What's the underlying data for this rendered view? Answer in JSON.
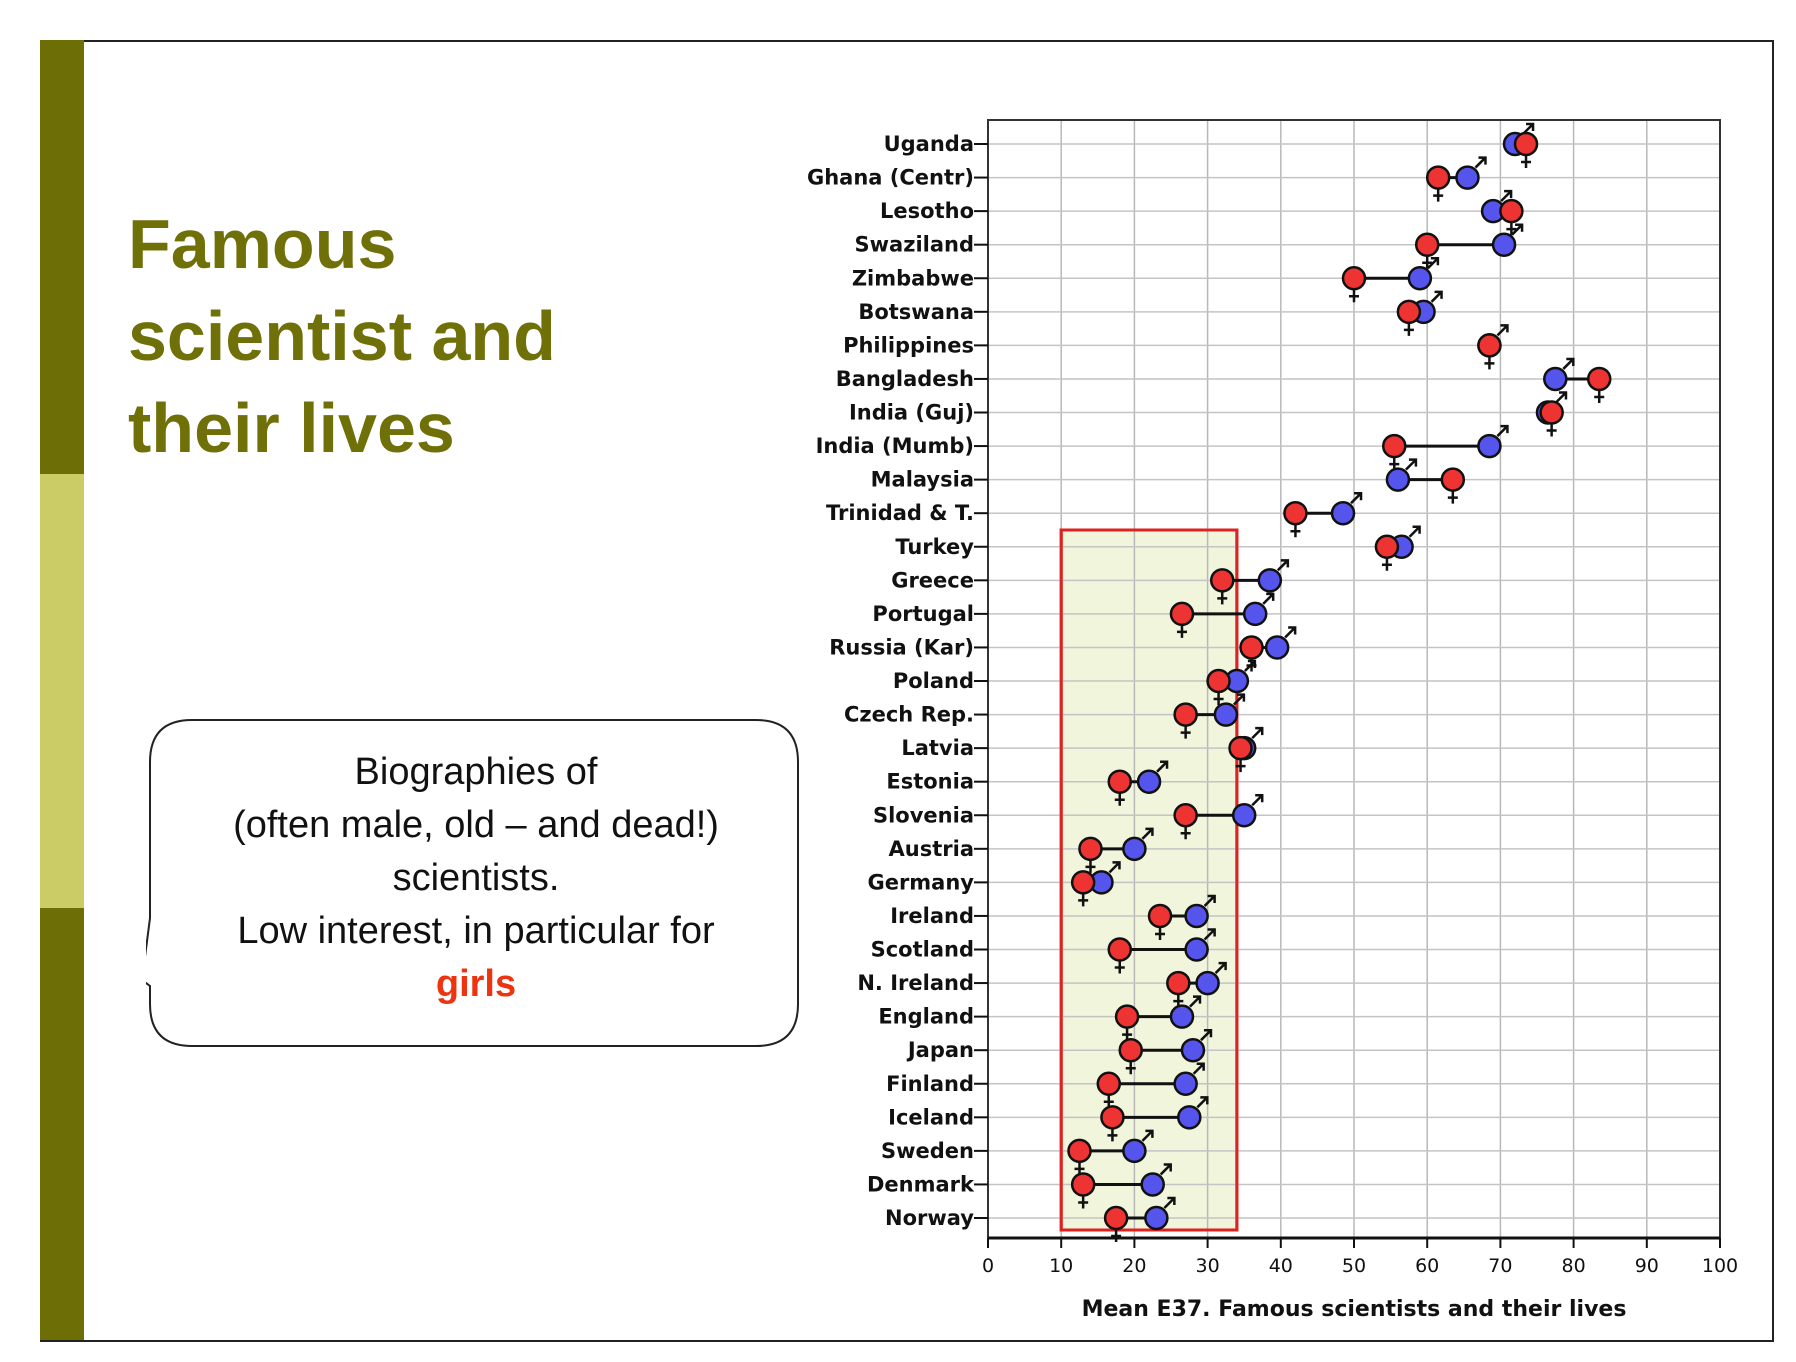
{
  "slide": {
    "title": "Famous\nscientist and\ntheir lives",
    "bubble": {
      "lines": [
        "Biographies of",
        "(often male, old – and dead!)",
        "scientists.",
        "Low interest, in particular for"
      ],
      "highlight": "girls"
    },
    "colors": {
      "title": "#707008",
      "bar_dark": "#6e6e06",
      "bar_light": "#cccc66",
      "highlight": "#ee3311"
    }
  },
  "chart_data": {
    "type": "scatter",
    "subtype": "dumbbell",
    "xlabel": "Mean E37. Famous scientists and their lives",
    "xlim": [
      0,
      100
    ],
    "xticks": [
      0,
      10,
      20,
      30,
      40,
      50,
      60,
      70,
      80,
      90,
      100
    ],
    "grid": true,
    "series": [
      {
        "name": "girls",
        "symbol": "♀",
        "color": "#ee3333"
      },
      {
        "name": "boys",
        "symbol": "♂",
        "color": "#5555ee"
      }
    ],
    "highlight_range": [
      10,
      34
    ],
    "categories": [
      "Uganda",
      "Ghana (Centr)",
      "Lesotho",
      "Swaziland",
      "Zimbabwe",
      "Botswana",
      "Philippines",
      "Bangladesh",
      "India (Guj)",
      "India (Mumb)",
      "Malaysia",
      "Trinidad & T.",
      "Turkey",
      "Greece",
      "Portugal",
      "Russia (Kar)",
      "Poland",
      "Czech Rep.",
      "Latvia",
      "Estonia",
      "Slovenia",
      "Austria",
      "Germany",
      "Ireland",
      "Scotland",
      "N. Ireland",
      "England",
      "Japan",
      "Finland",
      "Iceland",
      "Sweden",
      "Denmark",
      "Norway"
    ],
    "female": [
      73.5,
      61.5,
      71.5,
      60,
      50,
      57.5,
      68.5,
      83.5,
      77,
      55.5,
      63.5,
      42,
      54.5,
      32,
      26.5,
      36,
      31.5,
      27,
      34.5,
      18,
      27,
      14,
      13,
      23.5,
      18,
      26,
      19,
      19.5,
      16.5,
      17,
      12.5,
      13,
      17.5
    ],
    "male": [
      72,
      65.5,
      69,
      70.5,
      59,
      59.5,
      68.5,
      77.5,
      76.5,
      68.5,
      56,
      48.5,
      56.5,
      38.5,
      36.5,
      39.5,
      34,
      32.5,
      35,
      22,
      35,
      20,
      15.5,
      28.5,
      28.5,
      30,
      26.5,
      28,
      27,
      27.5,
      20,
      22.5,
      23
    ]
  }
}
